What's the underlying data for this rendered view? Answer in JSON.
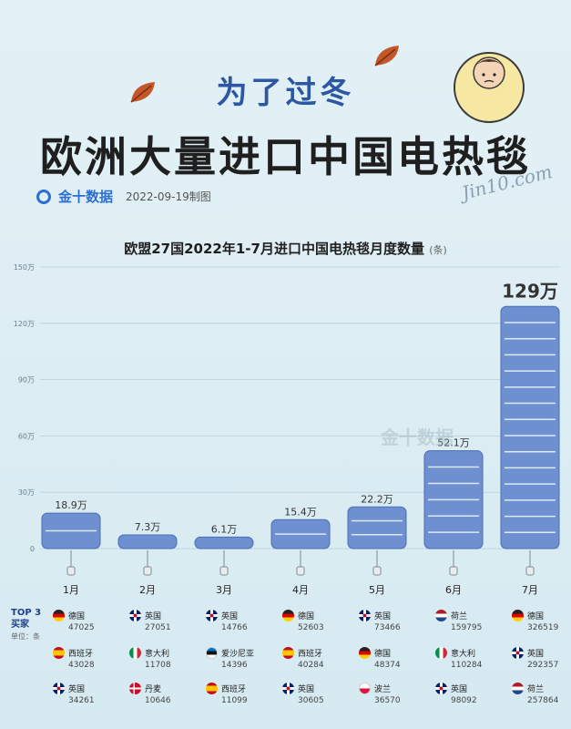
{
  "header": {
    "kicker": "为了过冬",
    "title": "欧洲大量进口中国电热毯",
    "brand": "金十数据",
    "date": "2022-09-19制图",
    "signature": "Jin10.com"
  },
  "watermark": "金十数据",
  "colors": {
    "bar": "#6e8fd0",
    "bar_stroke": "#4a6db5",
    "title_blue": "#2b57a3",
    "background": "#dcedf3"
  },
  "chart_data": {
    "type": "bar",
    "title": "欧盟27国2022年1-7月进口中国电热毯月度数量",
    "unit": "(条)",
    "categories": [
      "1月",
      "2月",
      "3月",
      "4月",
      "5月",
      "6月",
      "7月"
    ],
    "values": [
      18.9,
      7.3,
      6.1,
      15.4,
      22.2,
      52.1,
      129
    ],
    "value_labels": [
      "18.9万",
      "7.3万",
      "6.1万",
      "15.4万",
      "22.2万",
      "52.1万",
      "129万"
    ],
    "yticks": [
      0,
      30,
      60,
      90,
      120,
      150
    ],
    "ytick_labels": [
      "0",
      "30万",
      "60万",
      "90万",
      "120万",
      "150万"
    ],
    "ylim": [
      0,
      150
    ],
    "grid": true
  },
  "top3": {
    "label1": "TOP 3",
    "label2": "买家",
    "unit": "单位：条",
    "months": [
      [
        {
          "country": "德国",
          "flag": "de",
          "value": "47025"
        },
        {
          "country": "西班牙",
          "flag": "es",
          "value": "43028"
        },
        {
          "country": "英国",
          "flag": "gb",
          "value": "34261"
        }
      ],
      [
        {
          "country": "英国",
          "flag": "gb",
          "value": "27051"
        },
        {
          "country": "意大利",
          "flag": "it",
          "value": "11708"
        },
        {
          "country": "丹麦",
          "flag": "dk",
          "value": "10646"
        }
      ],
      [
        {
          "country": "英国",
          "flag": "gb",
          "value": "14766"
        },
        {
          "country": "爱沙尼亚",
          "flag": "ee",
          "value": "14396"
        },
        {
          "country": "西班牙",
          "flag": "es",
          "value": "11099"
        }
      ],
      [
        {
          "country": "德国",
          "flag": "de",
          "value": "52603"
        },
        {
          "country": "西班牙",
          "flag": "es",
          "value": "40284"
        },
        {
          "country": "英国",
          "flag": "gb",
          "value": "30605"
        }
      ],
      [
        {
          "country": "英国",
          "flag": "gb",
          "value": "73466"
        },
        {
          "country": "德国",
          "flag": "de",
          "value": "48374"
        },
        {
          "country": "波兰",
          "flag": "pl",
          "value": "36570"
        }
      ],
      [
        {
          "country": "荷兰",
          "flag": "nl",
          "value": "159795"
        },
        {
          "country": "意大利",
          "flag": "it",
          "value": "110284"
        },
        {
          "country": "英国",
          "flag": "gb",
          "value": "98092"
        }
      ],
      [
        {
          "country": "德国",
          "flag": "de",
          "value": "326519"
        },
        {
          "country": "英国",
          "flag": "gb",
          "value": "292357"
        },
        {
          "country": "荷兰",
          "flag": "nl",
          "value": "257864"
        }
      ]
    ]
  }
}
